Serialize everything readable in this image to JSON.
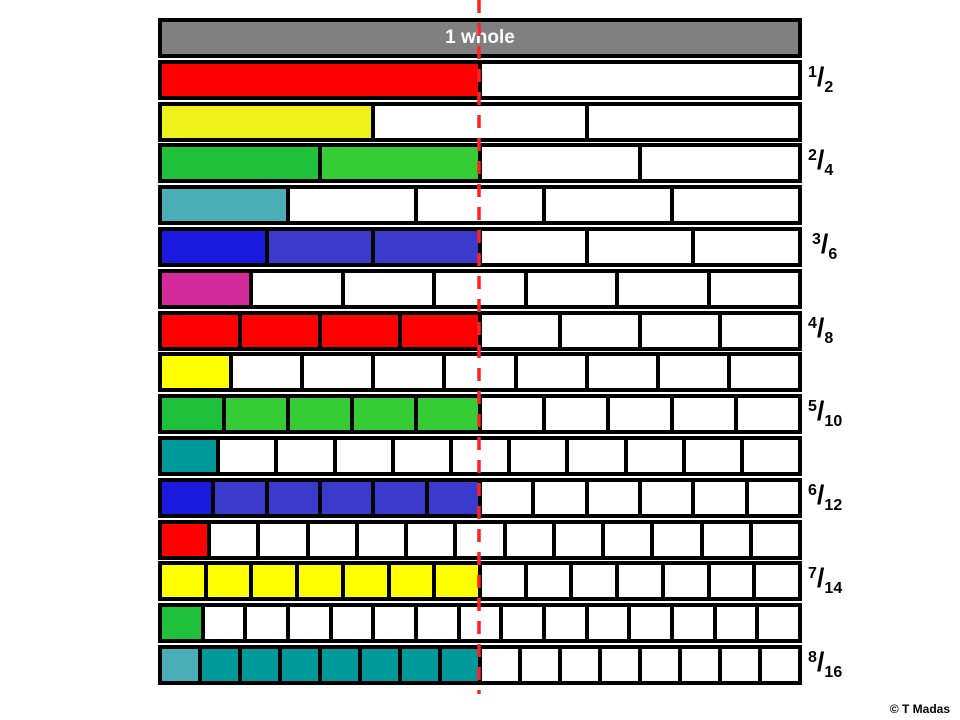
{
  "whole_label": "1 whole",
  "divisors": [
    2,
    3,
    4,
    5,
    6,
    7,
    8,
    9,
    10,
    11,
    12,
    13,
    14,
    15,
    16
  ],
  "shaded": [
    1,
    1,
    2,
    1,
    3,
    1,
    4,
    1,
    5,
    1,
    6,
    1,
    7,
    1,
    8
  ],
  "row_colors": [
    [
      "#ff0000"
    ],
    [
      "#eef21a"
    ],
    [
      "#1fc03a",
      "#35cc35"
    ],
    [
      "#4aaeb7"
    ],
    [
      "#1a1adf",
      "#3a3acc",
      "#3a3acc"
    ],
    [
      "#d42a9b"
    ],
    [
      "#ff0000",
      "#ff0000",
      "#ff0000",
      "#ff0000"
    ],
    [
      "#ffff00"
    ],
    [
      "#1fc03a",
      "#35cc35",
      "#35cc35",
      "#35cc35",
      "#35cc35"
    ],
    [
      "#009999"
    ],
    [
      "#1a1adf",
      "#3a3acc",
      "#3a3acc",
      "#3a3acc",
      "#3a3acc",
      "#3a3acc"
    ],
    [
      "#ff0000"
    ],
    [
      "#ffff00",
      "#ffff00",
      "#ffff00",
      "#ffff00",
      "#ffff00",
      "#ffff00",
      "#ffff00"
    ],
    [
      "#1fc03a"
    ],
    [
      "#4aaeb7",
      "#009999",
      "#009999",
      "#009999",
      "#009999",
      "#009999",
      "#009999",
      "#009999"
    ]
  ],
  "fractions": [
    {
      "num": "1",
      "den": "2"
    },
    {
      "num": "2",
      "den": "4"
    },
    {
      "num": "3",
      "den": "6"
    },
    {
      "num": "4",
      "den": "8"
    },
    {
      "num": "5",
      "den": "10"
    },
    {
      "num": "6",
      "den": "12"
    },
    {
      "num": "7",
      "den": "14"
    },
    {
      "num": "8",
      "den": "16"
    }
  ],
  "half_line_color": "#ff2222",
  "copyright": "© T Madas"
}
